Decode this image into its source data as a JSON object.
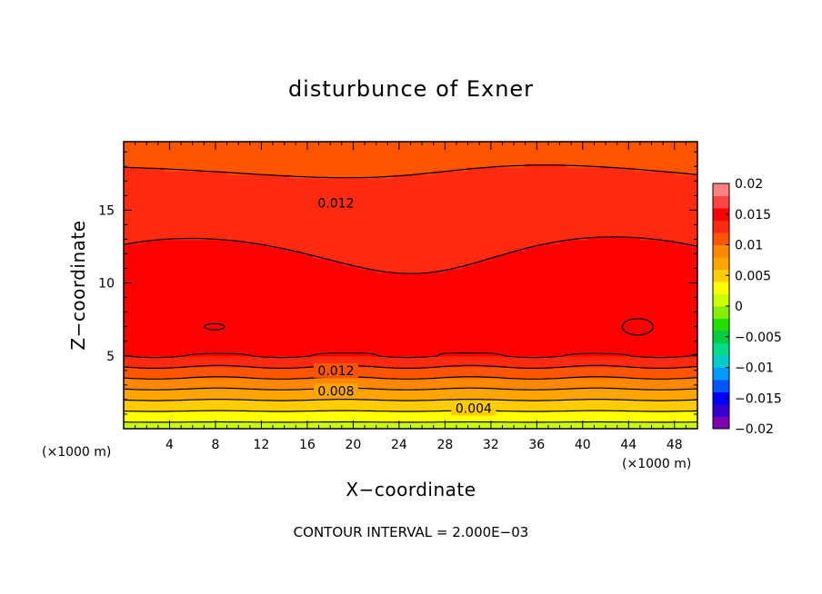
{
  "chart_data": {
    "type": "contour",
    "title": "disturbunce of Exner",
    "xlabel": "X−coordinate",
    "ylabel": "Z−coordinate",
    "x_unit": "(×1000 m)",
    "x_ticks": [
      "4",
      "8",
      "12",
      "16",
      "20",
      "24",
      "28",
      "32",
      "36",
      "40",
      "44",
      "48"
    ],
    "y_ticks": [
      "5",
      "10",
      "15"
    ],
    "xlim": [
      0,
      50
    ],
    "ylim": [
      0,
      19.7
    ],
    "contour_interval_text": "CONTOUR INTERVAL = 2.000E−03",
    "contour_labels": [
      {
        "text": "0.012",
        "x": 18.5,
        "z": 15.5
      },
      {
        "text": "0.012",
        "x": 18.5,
        "z": 4.0
      },
      {
        "text": "0.008",
        "x": 18.5,
        "z": 2.6
      },
      {
        "text": "0.004",
        "x": 30.5,
        "z": 1.4
      }
    ],
    "colorbar": {
      "ticks": [
        "0.02",
        "0.015",
        "0.01",
        "0.005",
        "0",
        "−0.005",
        "−0.01",
        "−0.015",
        "−0.02"
      ],
      "range": [
        -0.02,
        0.02
      ],
      "colors": [
        "#7f00b0",
        "#3300d0",
        "#0000ff",
        "#0055ff",
        "#0099ff",
        "#00cccc",
        "#00dd88",
        "#00cc44",
        "#22dd00",
        "#88ee00",
        "#ccff00",
        "#ffff00",
        "#ffcc00",
        "#ffa500",
        "#ff8800",
        "#ff5500",
        "#ff2a10",
        "#ff0000",
        "#ff4444",
        "#ff8080"
      ]
    },
    "isolines": [
      0.002,
      0.004,
      0.006,
      0.008,
      0.01,
      0.012,
      0.014
    ]
  }
}
